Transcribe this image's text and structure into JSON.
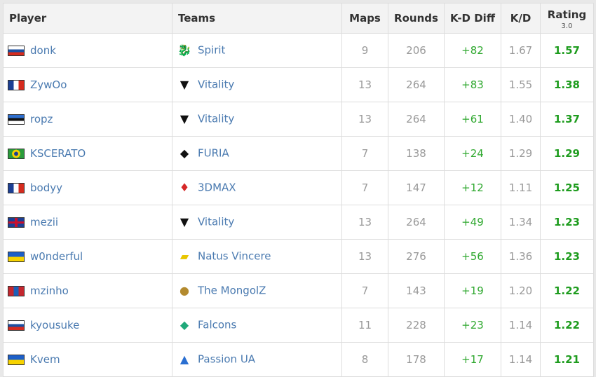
{
  "headers": {
    "player": "Player",
    "teams": "Teams",
    "maps": "Maps",
    "rounds": "Rounds",
    "kd_diff": "K-D Diff",
    "kd": "K/D",
    "rating": "Rating",
    "rating_version": "3.0"
  },
  "rows": [
    {
      "player": "donk",
      "flag": "russia",
      "team": "Spirit",
      "maps": "9",
      "rounds": "206",
      "kd_diff": "+82",
      "kd": "1.67",
      "rating": "1.57"
    },
    {
      "player": "ZywOo",
      "flag": "france",
      "team": "Vitality",
      "maps": "13",
      "rounds": "264",
      "kd_diff": "+83",
      "kd": "1.55",
      "rating": "1.38"
    },
    {
      "player": "ropz",
      "flag": "estonia",
      "team": "Vitality",
      "maps": "13",
      "rounds": "264",
      "kd_diff": "+61",
      "kd": "1.40",
      "rating": "1.37"
    },
    {
      "player": "KSCERATO",
      "flag": "brazil",
      "team": "FURIA",
      "maps": "7",
      "rounds": "138",
      "kd_diff": "+24",
      "kd": "1.29",
      "rating": "1.29"
    },
    {
      "player": "bodyy",
      "flag": "france",
      "team": "3DMAX",
      "maps": "7",
      "rounds": "147",
      "kd_diff": "+12",
      "kd": "1.11",
      "rating": "1.25"
    },
    {
      "player": "mezii",
      "flag": "uk",
      "team": "Vitality",
      "maps": "13",
      "rounds": "264",
      "kd_diff": "+49",
      "kd": "1.34",
      "rating": "1.23"
    },
    {
      "player": "w0nderful",
      "flag": "ukraine",
      "team": "Natus Vincere",
      "maps": "13",
      "rounds": "276",
      "kd_diff": "+56",
      "kd": "1.36",
      "rating": "1.23"
    },
    {
      "player": "mzinho",
      "flag": "mongolia",
      "team": "The MongolZ",
      "maps": "7",
      "rounds": "143",
      "kd_diff": "+19",
      "kd": "1.20",
      "rating": "1.22"
    },
    {
      "player": "kyousuke",
      "flag": "russia",
      "team": "Falcons",
      "maps": "11",
      "rounds": "228",
      "kd_diff": "+23",
      "kd": "1.14",
      "rating": "1.22"
    },
    {
      "player": "Kvem",
      "flag": "ukraine",
      "team": "Passion UA",
      "maps": "8",
      "rounds": "178",
      "kd_diff": "+17",
      "kd": "1.14",
      "rating": "1.21"
    }
  ]
}
